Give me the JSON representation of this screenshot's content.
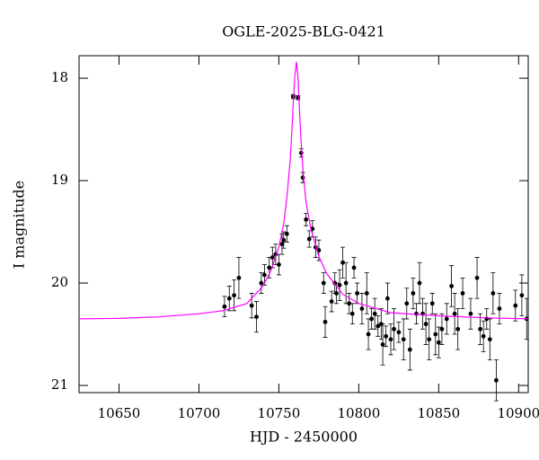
{
  "chart_data": {
    "type": "scatter",
    "title": "OGLE-2025-BLG-0421",
    "xlabel": "HJD - 2450000",
    "ylabel": "I magnitude",
    "xlim": [
      10625,
      10906
    ],
    "ylim": [
      21.07,
      17.78
    ],
    "y_inverted": true,
    "xticks": [
      10650,
      10700,
      10750,
      10800,
      10850,
      10900
    ],
    "yticks": [
      18,
      19,
      20,
      21
    ],
    "series": [
      {
        "type": "errorbar",
        "color": "#000000",
        "x": [
          10716,
          10719,
          10722,
          10725,
          10733,
          10736,
          10739,
          10741,
          10744,
          10746,
          10748,
          10750,
          10752,
          10753,
          10755,
          10759,
          10762,
          10764,
          10765,
          10767,
          10769,
          10771,
          10773,
          10775,
          10778,
          10779,
          10783,
          10785,
          10786,
          10788,
          10790,
          10792,
          10794,
          10796,
          10797,
          10799,
          10802,
          10805,
          10806,
          10808,
          10810,
          10812,
          10814,
          10815,
          10817,
          10818,
          10820,
          10822,
          10825,
          10828,
          10830,
          10832,
          10834,
          10836,
          10838,
          10840,
          10842,
          10844,
          10846,
          10848,
          10850,
          10852,
          10855,
          10858,
          10860,
          10862,
          10865,
          10870,
          10874,
          10876,
          10878,
          10880,
          10882,
          10884,
          10886,
          10888,
          10898,
          10902,
          10905
        ],
        "values": [
          20.23,
          20.15,
          20.12,
          19.95,
          20.22,
          20.33,
          20.0,
          19.92,
          19.85,
          19.75,
          19.72,
          19.82,
          19.62,
          19.58,
          19.52,
          18.18,
          18.19,
          18.73,
          18.97,
          19.38,
          19.57,
          19.47,
          19.65,
          19.68,
          20.0,
          20.38,
          20.18,
          20.0,
          20.1,
          20.02,
          19.8,
          20.0,
          20.2,
          20.3,
          19.85,
          20.1,
          20.25,
          20.1,
          20.5,
          20.35,
          20.3,
          20.42,
          20.4,
          20.6,
          20.52,
          20.15,
          20.55,
          20.45,
          20.48,
          20.55,
          20.2,
          20.65,
          20.1,
          20.3,
          20.0,
          20.3,
          20.4,
          20.55,
          20.2,
          20.5,
          20.58,
          20.45,
          20.35,
          20.03,
          20.3,
          20.45,
          20.1,
          20.3,
          19.95,
          20.45,
          20.52,
          20.35,
          20.55,
          20.1,
          20.95,
          20.25,
          20.22,
          20.12,
          20.35
        ],
        "errors": [
          0.1,
          0.12,
          0.15,
          0.2,
          0.12,
          0.15,
          0.1,
          0.1,
          0.1,
          0.1,
          0.1,
          0.1,
          0.1,
          0.08,
          0.08,
          0.02,
          0.02,
          0.04,
          0.05,
          0.06,
          0.08,
          0.08,
          0.1,
          0.1,
          0.1,
          0.15,
          0.1,
          0.1,
          0.1,
          0.15,
          0.15,
          0.2,
          0.1,
          0.1,
          0.1,
          0.1,
          0.15,
          0.2,
          0.15,
          0.1,
          0.15,
          0.1,
          0.15,
          0.2,
          0.1,
          0.15,
          0.15,
          0.2,
          0.1,
          0.2,
          0.15,
          0.2,
          0.15,
          0.1,
          0.2,
          0.15,
          0.2,
          0.2,
          0.1,
          0.2,
          0.15,
          0.15,
          0.15,
          0.2,
          0.2,
          0.2,
          0.15,
          0.15,
          0.2,
          0.15,
          0.15,
          0.1,
          0.2,
          0.2,
          0.2,
          0.15,
          0.15,
          0.2,
          0.2
        ]
      },
      {
        "type": "line",
        "color": "#ff00ff",
        "x": [
          10625,
          10650,
          10675,
          10700,
          10715,
          10730,
          10740,
          10745,
          10750,
          10753,
          10755,
          10757,
          10758,
          10759,
          10760,
          10761,
          10762,
          10763,
          10764,
          10765,
          10767,
          10770,
          10775,
          10780,
          10790,
          10800,
          10820,
          10850,
          10880,
          10906
        ],
        "values": [
          20.35,
          20.345,
          20.33,
          20.3,
          20.27,
          20.2,
          20.03,
          19.88,
          19.65,
          19.42,
          19.17,
          18.82,
          18.55,
          18.25,
          17.98,
          17.84,
          18.0,
          18.35,
          18.64,
          18.88,
          19.21,
          19.47,
          19.74,
          19.91,
          20.11,
          20.2,
          20.29,
          20.32,
          20.34,
          20.35
        ]
      }
    ]
  }
}
